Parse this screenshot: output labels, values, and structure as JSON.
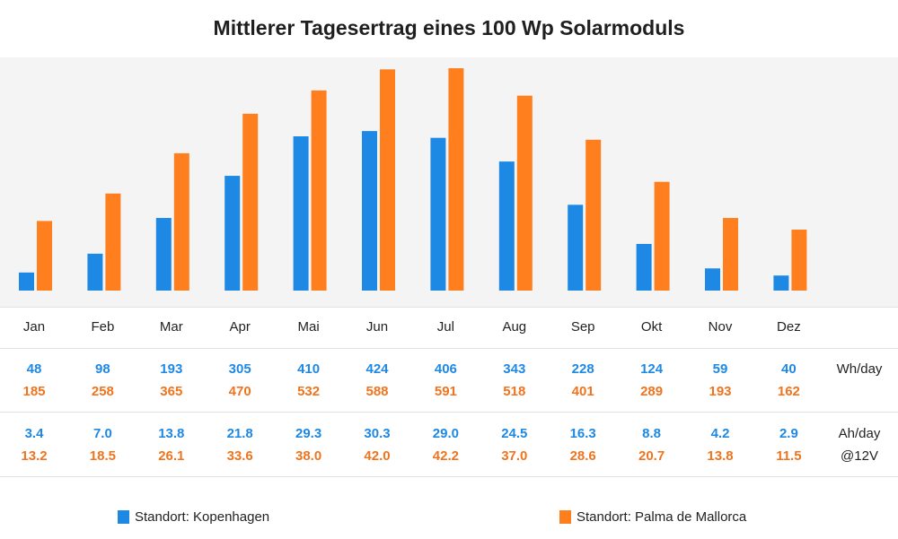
{
  "title": "Mittlerer Tagesertrag eines 100 Wp Solarmoduls",
  "colors": {
    "kopenhagen": "#1e88e5",
    "palma": "#ff7f1e",
    "palma_text": "#f0741e",
    "plot_bg": "#f4f4f4"
  },
  "units": {
    "wh": "Wh/day",
    "ah": "Ah/day",
    "ah_sub": "@12V"
  },
  "legend": [
    {
      "label": "Standort: Kopenhagen"
    },
    {
      "label": "Standort: Palma de Mallorca"
    }
  ],
  "chart_data": {
    "type": "bar",
    "title": "Mittlerer Tagesertrag eines 100 Wp Solarmoduls",
    "categories": [
      "Jan",
      "Feb",
      "Mar",
      "Apr",
      "Mai",
      "Jun",
      "Jul",
      "Aug",
      "Sep",
      "Okt",
      "Nov",
      "Dez"
    ],
    "series": [
      {
        "name": "Standort: Kopenhagen",
        "values": [
          48,
          98,
          193,
          305,
          410,
          424,
          406,
          343,
          228,
          124,
          59,
          40
        ],
        "ah_values": [
          "3.4",
          "7.0",
          "13.8",
          "21.8",
          "29.3",
          "30.3",
          "29.0",
          "24.5",
          "16.3",
          "8.8",
          "4.2",
          "2.9"
        ]
      },
      {
        "name": "Standort: Palma de Mallorca",
        "values": [
          185,
          258,
          365,
          470,
          532,
          588,
          591,
          518,
          401,
          289,
          193,
          162
        ],
        "ah_values": [
          "13.2",
          "18.5",
          "26.1",
          "33.6",
          "38.0",
          "42.0",
          "42.2",
          "37.0",
          "28.6",
          "20.7",
          "13.8",
          "11.5"
        ]
      }
    ],
    "ylim": [
      0,
      610
    ],
    "grid": false,
    "legend_position": "bottom"
  }
}
